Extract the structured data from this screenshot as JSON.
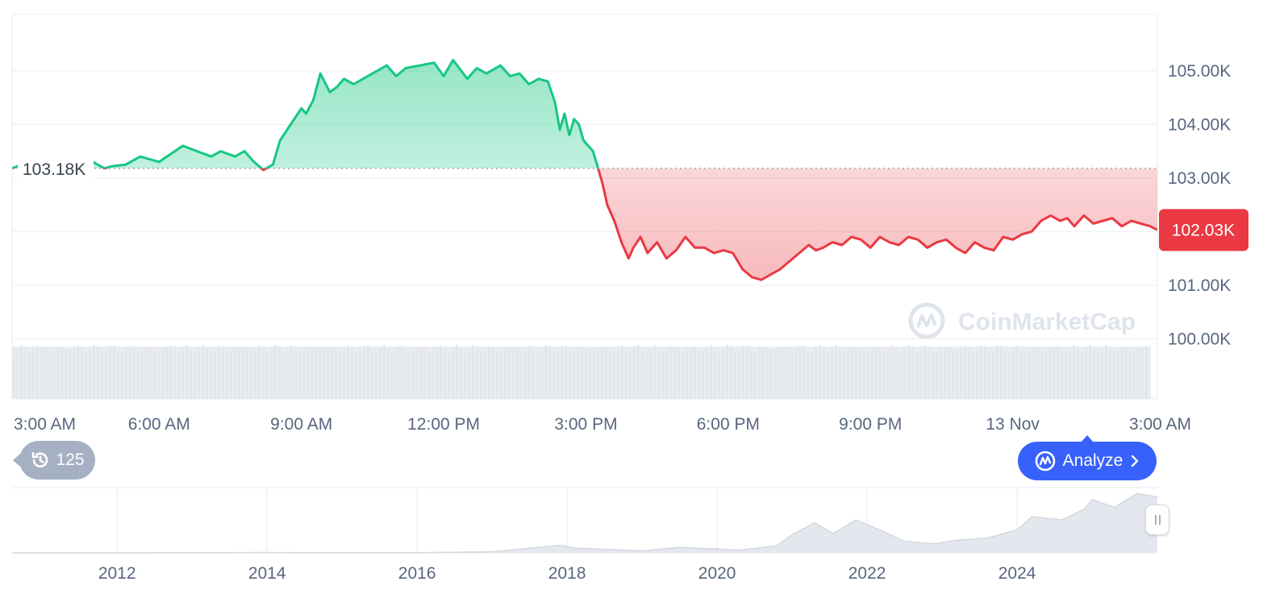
{
  "colors": {
    "up": "#16c784",
    "down": "#ea3943",
    "grid": "#eff2f5",
    "axis_text": "#58667e",
    "volume": "#e9ecf0",
    "price_badge": "#ea3943",
    "analyze": "#3861fb",
    "history": "#a6b0c3"
  },
  "watermark": "CoinMarketCap",
  "history_badge": {
    "icon": "history-icon",
    "count": "125"
  },
  "analyze_button": {
    "label": "Analyze",
    "icon": "coinmarketcap-logo-icon",
    "chevron": "chevron-right-icon"
  },
  "chart_data": [
    {
      "type": "area",
      "y_tick_labels": [
        "105.00K",
        "104.00K",
        "103.00K",
        "101.00K",
        "100.00K"
      ],
      "y_ticks": [
        105000,
        104000,
        103000,
        101000,
        100000
      ],
      "ylim": [
        99960,
        106050
      ],
      "x_tick_labels": [
        "3:00 AM",
        "6:00 AM",
        "9:00 AM",
        "12:00 PM",
        "3:00 PM",
        "6:00 PM",
        "9:00 PM",
        "13 Nov",
        "3:00 AM"
      ],
      "x_ticks": [
        3,
        6,
        9,
        12,
        15,
        18,
        21,
        24,
        27
      ],
      "xlim": [
        2.9,
        27.05
      ],
      "baseline": 103180,
      "baseline_label": "103.18K",
      "current_price": 102030,
      "current_price_label": "102.03K",
      "grid": true,
      "series": [
        {
          "x": [
            2.9,
            3.1,
            3.6,
            4.1,
            4.6,
            4.85,
            5.0,
            5.3,
            5.6,
            6.0,
            6.2,
            6.5,
            6.8,
            7.1,
            7.3,
            7.6,
            7.8,
            8.0,
            8.2,
            8.4,
            8.55,
            8.7,
            8.85,
            9.0,
            9.1,
            9.25,
            9.4,
            9.6,
            9.75,
            9.9,
            10.1,
            10.3,
            10.5,
            10.8,
            11.0,
            11.2,
            11.5,
            11.8,
            12.0,
            12.2,
            12.5,
            12.7,
            12.9,
            13.2,
            13.4,
            13.6,
            13.8,
            14.0,
            14.2,
            14.35,
            14.45,
            14.55,
            14.65,
            14.75,
            14.85,
            14.95,
            15.05,
            15.15,
            15.25,
            15.35,
            15.45,
            15.6,
            15.75,
            15.9,
            16.0,
            16.15,
            16.3,
            16.5,
            16.7,
            16.9,
            17.1,
            17.3,
            17.5,
            17.7,
            17.9,
            18.1,
            18.3,
            18.5,
            18.7,
            18.9,
            19.1,
            19.3,
            19.5,
            19.7,
            19.85,
            20.0,
            20.2,
            20.4,
            20.6,
            20.8,
            21.0,
            21.2,
            21.4,
            21.6,
            21.8,
            22.0,
            22.2,
            22.4,
            22.6,
            22.8,
            23.0,
            23.2,
            23.4,
            23.6,
            23.8,
            24.0,
            24.2,
            24.4,
            24.6,
            24.8,
            25.0,
            25.15,
            25.3,
            25.5,
            25.7,
            25.9,
            26.1,
            26.3,
            26.5,
            26.7,
            26.9,
            27.05
          ],
          "y": [
            103180,
            103250,
            103280,
            103180,
            103300,
            103180,
            103220,
            103250,
            103400,
            103300,
            103420,
            103600,
            103500,
            103400,
            103500,
            103400,
            103500,
            103300,
            103150,
            103250,
            103700,
            103900,
            104100,
            104300,
            104200,
            104450,
            104950,
            104600,
            104700,
            104850,
            104750,
            104850,
            104950,
            105100,
            104900,
            105050,
            105100,
            105150,
            104900,
            105200,
            104850,
            105050,
            104950,
            105100,
            104900,
            104950,
            104750,
            104850,
            104800,
            104400,
            103900,
            104200,
            103800,
            104100,
            104000,
            103700,
            103600,
            103500,
            103200,
            102900,
            102500,
            102200,
            101800,
            101500,
            101700,
            101900,
            101600,
            101800,
            101500,
            101650,
            101900,
            101700,
            101700,
            101600,
            101650,
            101600,
            101300,
            101150,
            101100,
            101200,
            101300,
            101450,
            101600,
            101750,
            101650,
            101700,
            101800,
            101750,
            101900,
            101850,
            101700,
            101900,
            101800,
            101750,
            101900,
            101850,
            101700,
            101800,
            101850,
            101700,
            101600,
            101800,
            101700,
            101650,
            101900,
            101850,
            101950,
            102000,
            102200,
            102300,
            102200,
            102250,
            102100,
            102300,
            102150,
            102200,
            102250,
            102100,
            102200,
            102150,
            102100,
            102030
          ]
        }
      ]
    },
    {
      "type": "area",
      "x_tick_labels": [
        "2012",
        "2014",
        "2016",
        "2018",
        "2020",
        "2022",
        "2024"
      ],
      "x_ticks": [
        2012,
        2014,
        2016,
        2018,
        2020,
        2022,
        2024
      ],
      "xlim": [
        2010.6,
        2025.87
      ],
      "ylim": [
        0,
        110000
      ],
      "series": [
        {
          "x": [
            2010.6,
            2013.0,
            2013.9,
            2014.5,
            2016.0,
            2017.0,
            2017.9,
            2018.1,
            2018.5,
            2019.0,
            2019.5,
            2020.0,
            2020.3,
            2020.8,
            2021.0,
            2021.3,
            2021.55,
            2021.85,
            2022.2,
            2022.5,
            2022.9,
            2023.2,
            2023.6,
            2024.0,
            2024.2,
            2024.6,
            2024.9,
            2025.0,
            2025.3,
            2025.6,
            2025.87
          ],
          "y": [
            0,
            100,
            800,
            500,
            400,
            2000,
            14000,
            9000,
            6500,
            3700,
            10000,
            7200,
            5000,
            13000,
            33000,
            55000,
            35000,
            60000,
            40000,
            21000,
            16500,
            23000,
            27000,
            42000,
            66000,
            60000,
            80000,
            97000,
            83000,
            108000,
            102000
          ]
        }
      ]
    }
  ]
}
